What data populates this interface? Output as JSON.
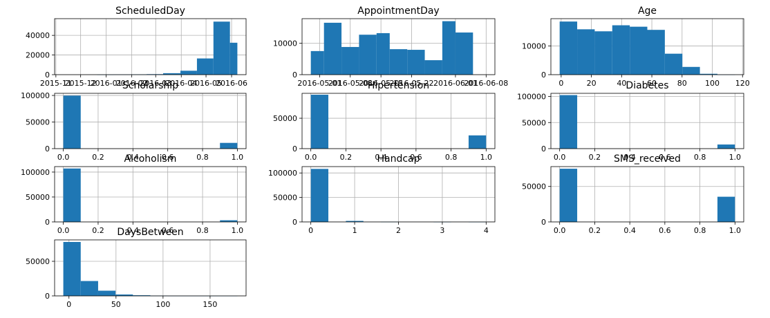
{
  "colors": {
    "bar": "#1f77b4",
    "grid": "#b0b0b0",
    "axis": "#000000",
    "background": "#ffffff"
  },
  "chart_data": [
    {
      "type": "bar",
      "title": "ScheduledDay",
      "grid": true,
      "x_tick_labels": [
        "2015-11",
        "2015-12",
        "2016-01",
        "2016-02",
        "2016-03",
        "2016-04",
        "2016-05",
        "2016-06"
      ],
      "y_ticks": [
        0,
        20000,
        40000
      ],
      "ylim": [
        0,
        57000
      ],
      "bins": [
        {
          "start": "2015-11-10",
          "end": "2015-12-01",
          "count": 0
        },
        {
          "start": "2015-12-01",
          "end": "2015-12-21",
          "count": 0
        },
        {
          "start": "2015-12-21",
          "end": "2016-01-10",
          "count": 50
        },
        {
          "start": "2016-01-10",
          "end": "2016-01-30",
          "count": 150
        },
        {
          "start": "2016-01-30",
          "end": "2016-02-19",
          "count": 300
        },
        {
          "start": "2016-02-19",
          "end": "2016-03-10",
          "count": 500
        },
        {
          "start": "2016-03-10",
          "end": "2016-03-31",
          "count": 1500
        },
        {
          "start": "2016-03-31",
          "end": "2016-04-20",
          "count": 4000
        },
        {
          "start": "2016-04-20",
          "end": "2016-05-10",
          "count": 16500
        },
        {
          "start": "2016-05-10",
          "end": "2016-05-30",
          "count": 54000
        },
        {
          "start": "2016-05-30",
          "end": "2016-06-08",
          "count": 32500
        }
      ]
    },
    {
      "type": "bar",
      "title": "AppointmentDay",
      "grid": true,
      "x_tick_labels": [
        "2016-05-01",
        "2016-05-08",
        "2016-05-15",
        "2016-05-22",
        "2016-06-01",
        "2016-06-08"
      ],
      "y_ticks": [
        0,
        10000
      ],
      "ylim": [
        0,
        17800
      ],
      "bins": [
        {
          "start": "2016-04-29",
          "end": "2016-05-02",
          "count": 7500
        },
        {
          "start": "2016-05-02",
          "end": "2016-05-06",
          "count": 16500
        },
        {
          "start": "2016-05-06",
          "end": "2016-05-10",
          "count": 8800
        },
        {
          "start": "2016-05-10",
          "end": "2016-05-14",
          "count": 12700
        },
        {
          "start": "2016-05-14",
          "end": "2016-05-17",
          "count": 13200
        },
        {
          "start": "2016-05-17",
          "end": "2016-05-21",
          "count": 8100
        },
        {
          "start": "2016-05-21",
          "end": "2016-05-25",
          "count": 7900
        },
        {
          "start": "2016-05-25",
          "end": "2016-05-29",
          "count": 4600
        },
        {
          "start": "2016-05-29",
          "end": "2016-06-01",
          "count": 17000
        },
        {
          "start": "2016-06-01",
          "end": "2016-06-05",
          "count": 13400
        }
      ]
    },
    {
      "type": "bar",
      "title": "Age",
      "grid": true,
      "x_tick_labels": [
        "0",
        "20",
        "40",
        "60",
        "80",
        "100",
        "120"
      ],
      "y_ticks": [
        0,
        10000
      ],
      "ylim": [
        0,
        19500
      ],
      "bins": [
        {
          "start": -1,
          "end": 10.6,
          "count": 18500
        },
        {
          "start": 10.6,
          "end": 22.2,
          "count": 15800
        },
        {
          "start": 22.2,
          "end": 33.8,
          "count": 15100
        },
        {
          "start": 33.8,
          "end": 45.4,
          "count": 17200
        },
        {
          "start": 45.4,
          "end": 57.0,
          "count": 16700
        },
        {
          "start": 57.0,
          "end": 68.6,
          "count": 15600
        },
        {
          "start": 68.6,
          "end": 80.2,
          "count": 7300
        },
        {
          "start": 80.2,
          "end": 91.8,
          "count": 2700
        },
        {
          "start": 91.8,
          "end": 103.4,
          "count": 300
        },
        {
          "start": 103.4,
          "end": 115,
          "count": 10
        }
      ]
    },
    {
      "type": "bar",
      "title": "Scholarship",
      "grid": true,
      "x_tick_labels": [
        "0.0",
        "0.2",
        "0.4",
        "0.6",
        "0.8",
        "1.0"
      ],
      "y_ticks": [
        0,
        50000,
        100000
      ],
      "ylim": [
        0,
        104000
      ],
      "bins": [
        {
          "start": 0.0,
          "end": 0.1,
          "count": 99700
        },
        {
          "start": 0.9,
          "end": 1.0,
          "count": 10800
        }
      ]
    },
    {
      "type": "bar",
      "title": "Hipertension",
      "grid": true,
      "x_tick_labels": [
        "0.0",
        "0.2",
        "0.4",
        "0.6",
        "0.8",
        "1.0"
      ],
      "y_ticks": [
        0,
        50000
      ],
      "ylim": [
        0,
        91000
      ],
      "bins": [
        {
          "start": 0.0,
          "end": 0.1,
          "count": 88700
        },
        {
          "start": 0.9,
          "end": 1.0,
          "count": 21800
        }
      ]
    },
    {
      "type": "bar",
      "title": "Diabetes",
      "grid": true,
      "x_tick_labels": [
        "0.0",
        "0.2",
        "0.4",
        "0.6",
        "0.8",
        "1.0"
      ],
      "y_ticks": [
        0,
        50000,
        100000
      ],
      "ylim": [
        0,
        106000
      ],
      "bins": [
        {
          "start": 0.0,
          "end": 0.1,
          "count": 102600
        },
        {
          "start": 0.9,
          "end": 1.0,
          "count": 7900
        }
      ]
    },
    {
      "type": "bar",
      "title": "Alcoholism",
      "grid": true,
      "x_tick_labels": [
        "0.0",
        "0.2",
        "0.4",
        "0.6",
        "0.8",
        "1.0"
      ],
      "y_ticks": [
        0,
        50000,
        100000
      ],
      "ylim": [
        0,
        111000
      ],
      "bins": [
        {
          "start": 0.0,
          "end": 0.1,
          "count": 107200
        },
        {
          "start": 0.9,
          "end": 1.0,
          "count": 3300
        }
      ]
    },
    {
      "type": "bar",
      "title": "Handcap",
      "grid": true,
      "x_tick_labels": [
        "0",
        "1",
        "2",
        "3",
        "4"
      ],
      "y_ticks": [
        0,
        50000,
        100000
      ],
      "ylim": [
        0,
        113000
      ],
      "bins": [
        {
          "start": 0.0,
          "end": 0.4,
          "count": 108300
        },
        {
          "start": 0.8,
          "end": 1.2,
          "count": 2000
        },
        {
          "start": 1.6,
          "end": 2.0,
          "count": 180
        },
        {
          "start": 2.8,
          "end": 3.2,
          "count": 13
        },
        {
          "start": 3.6,
          "end": 4.0,
          "count": 3
        }
      ]
    },
    {
      "type": "bar",
      "title": "SMS_received",
      "grid": true,
      "x_tick_labels": [
        "0.0",
        "0.2",
        "0.4",
        "0.6",
        "0.8",
        "1.0"
      ],
      "y_ticks": [
        0,
        50000
      ],
      "ylim": [
        0,
        78000
      ],
      "bins": [
        {
          "start": 0.0,
          "end": 0.1,
          "count": 75000
        },
        {
          "start": 0.9,
          "end": 1.0,
          "count": 35500
        }
      ]
    },
    {
      "type": "bar",
      "title": "DaysBetween",
      "grid": true,
      "x_tick_labels": [
        "0",
        "50",
        "100",
        "150"
      ],
      "y_ticks": [
        0,
        50000
      ],
      "ylim": [
        0,
        81000
      ],
      "bins": [
        {
          "start": -6,
          "end": 12.5,
          "count": 78000
        },
        {
          "start": 12.5,
          "end": 31,
          "count": 21500
        },
        {
          "start": 31,
          "end": 49.5,
          "count": 7500
        },
        {
          "start": 49.5,
          "end": 68,
          "count": 2000
        },
        {
          "start": 68,
          "end": 86.5,
          "count": 900
        },
        {
          "start": 86.5,
          "end": 105,
          "count": 250
        },
        {
          "start": 105,
          "end": 123.5,
          "count": 60
        },
        {
          "start": 123.5,
          "end": 142,
          "count": 30
        },
        {
          "start": 142,
          "end": 160.5,
          "count": 15
        },
        {
          "start": 160.5,
          "end": 179,
          "count": 10
        }
      ]
    }
  ]
}
